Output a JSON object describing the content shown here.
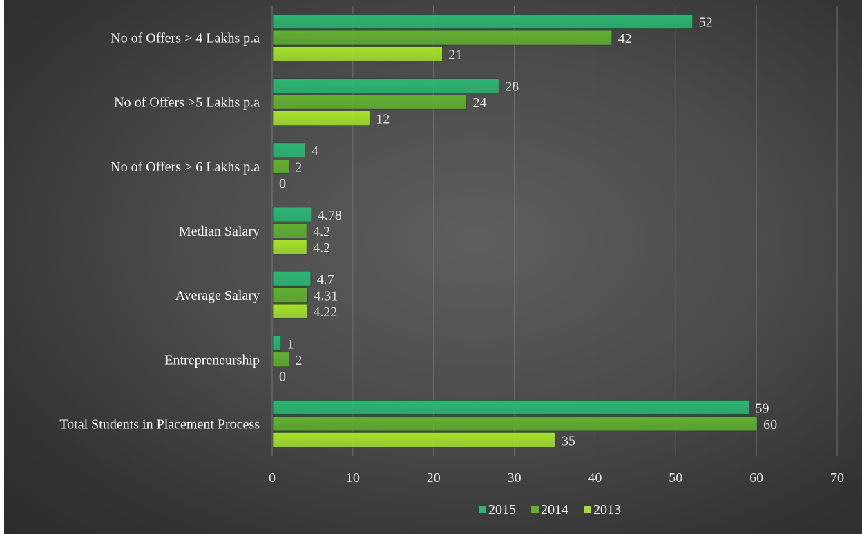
{
  "chart_data": {
    "type": "bar",
    "orientation": "horizontal",
    "title": "",
    "xlabel": "",
    "ylabel": "",
    "categories": [
      "No of Offers > 4 Lakhs p.a",
      "No of Offers >5 Lakhs p.a",
      "No of Offers > 6 Lakhs p.a",
      "Median Salary",
      "Average Salary",
      "Entrepreneurship",
      "Total Students in Placement Process"
    ],
    "series": [
      {
        "name": "2015",
        "color": "#2bb673",
        "values": [
          52,
          28,
          4,
          4.78,
          4.7,
          1,
          59
        ]
      },
      {
        "name": "2014",
        "color": "#62b030",
        "values": [
          42,
          24,
          2,
          4.2,
          4.31,
          2,
          60
        ]
      },
      {
        "name": "2013",
        "color": "#a6e22a",
        "values": [
          21,
          12,
          0,
          4.2,
          4.22,
          0,
          35
        ]
      }
    ],
    "data_labels": [
      [
        "52",
        "28",
        "4",
        "4.78",
        "4.7",
        "1",
        "59"
      ],
      [
        "42",
        "24",
        "2",
        "4.2",
        "4.31",
        "2",
        "60"
      ],
      [
        "21",
        "12",
        "0",
        "4.2",
        "4.22",
        "0",
        "35"
      ]
    ],
    "xlim": [
      0,
      70
    ],
    "xticks": [
      "0",
      "10",
      "20",
      "30",
      "40",
      "50",
      "60",
      "70"
    ],
    "grid": true,
    "legend_position": "bottom",
    "background": "dark-radial-gradient"
  }
}
